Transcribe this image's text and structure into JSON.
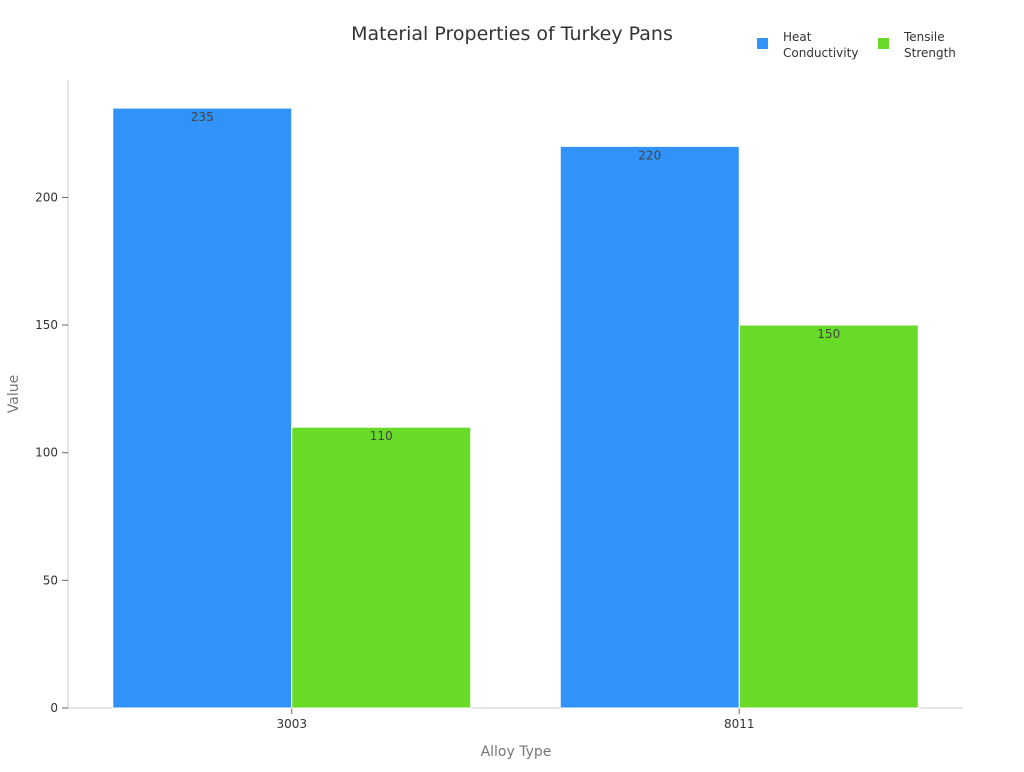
{
  "chart_data": {
    "type": "bar",
    "title": "Material Properties of Turkey Pans",
    "xlabel": "Alloy Type",
    "ylabel": "Value",
    "categories": [
      "3003",
      "8011"
    ],
    "series": [
      {
        "name": "Heat Conductivity",
        "values": [
          235,
          220
        ],
        "color": "#3192f9"
      },
      {
        "name": "Tensile Strength",
        "values": [
          110,
          150
        ],
        "color": "#67db28"
      }
    ],
    "ylim": [
      0,
      246
    ],
    "yticks": [
      0,
      50,
      100,
      150,
      200
    ],
    "grid": false,
    "legend_position": "top-right"
  }
}
